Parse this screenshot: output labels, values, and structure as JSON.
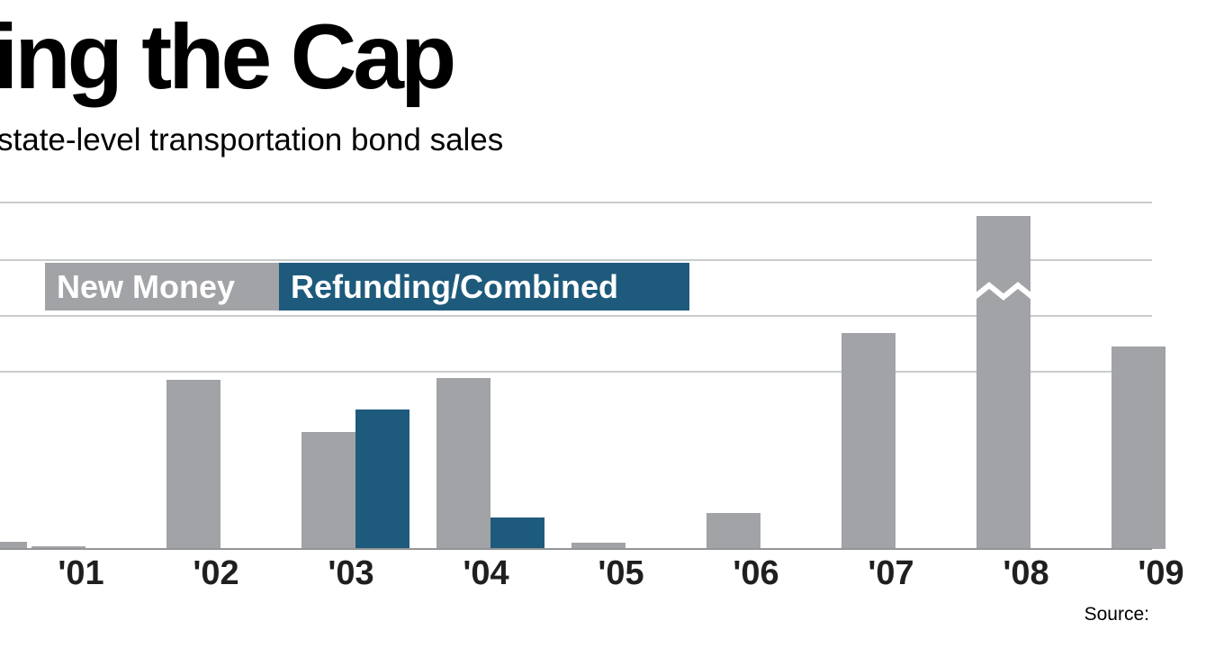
{
  "header": {
    "title": "ing the Cap",
    "subtitle": "state-level transportation bond sales"
  },
  "legend": {
    "items": [
      {
        "label": "New Money",
        "color": "#a1a3a6"
      },
      {
        "label": "Refunding/Combined",
        "color": "#1e5a7c"
      }
    ]
  },
  "source": {
    "label": "Source:"
  },
  "chart_data": {
    "type": "bar",
    "title": "ing the Cap",
    "subtitle": "state-level transportation bond sales",
    "categories": [
      "'01",
      "'02",
      "'03",
      "'04",
      "'05",
      "'06",
      "'07",
      "'08",
      "'09"
    ],
    "series": [
      {
        "name": "New Money",
        "color": "#a1a3a6",
        "values": [
          0.8,
          48.8,
          33.8,
          49.4,
          1.8,
          10.4,
          62.3,
          96.1,
          58.4
        ]
      },
      {
        "name": "Refunding/Combined",
        "color": "#1e5a7c",
        "values": [
          0,
          0,
          40.3,
          9.1,
          0,
          0,
          0,
          0,
          0
        ]
      }
    ],
    "ylim": [
      0,
      100
    ],
    "axis_break_index": 7,
    "partial_left_bar": {
      "value": 2
    },
    "grid": "horizontal gridlines in upper region only",
    "legend_position": "overlaid upper-left of plot",
    "notes": "Values on 0-100 relative scale; y-axis labels cropped out of frame. Title/subtitle cropped at left edge, '09 bar and source line cropped at right edge. '08 bar truncated with white zigzag break."
  }
}
